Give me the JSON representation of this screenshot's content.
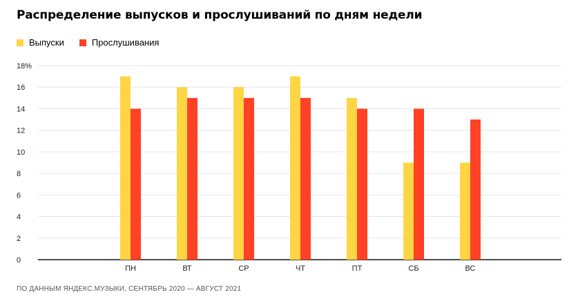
{
  "title": "Распределение выпусков и прослушиваний по дням недели",
  "footnote": "ПО ДАННЫМ ЯНДЕКС.МУЗЫКИ, СЕНТЯБРЬ 2020 — АВГУСТ 2021",
  "colors": {
    "releases": "#FFD544",
    "listens": "#FF4126"
  },
  "chart_data": {
    "type": "bar",
    "categories": [
      "ПН",
      "ВТ",
      "СР",
      "ЧТ",
      "ПТ",
      "СБ",
      "ВС"
    ],
    "series": [
      {
        "name": "Выпуски",
        "values": [
          17,
          16,
          16,
          17,
          15,
          9,
          9
        ]
      },
      {
        "name": "Прослушивания",
        "values": [
          14,
          15,
          15,
          15,
          14,
          14,
          13
        ]
      }
    ],
    "y_ticks": [
      "0",
      "2",
      "4",
      "6",
      "8",
      "10",
      "12",
      "14",
      "16",
      "18%"
    ],
    "ylim": [
      0,
      18
    ],
    "grid": true,
    "legend_position": "top-left"
  }
}
